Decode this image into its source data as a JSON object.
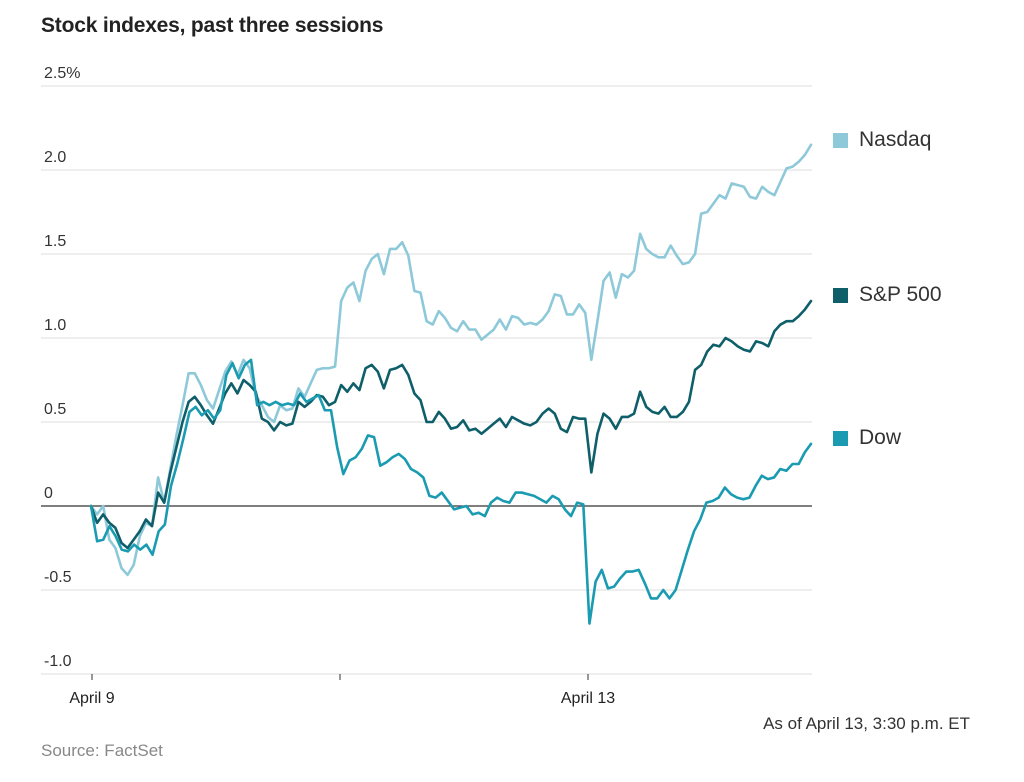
{
  "chart_data": {
    "type": "line",
    "title": "Stock indexes, past three sessions",
    "ylim": [
      -1.0,
      2.5
    ],
    "yticks": [
      {
        "value": 2.5,
        "label": "2.5%"
      },
      {
        "value": 2.0,
        "label": "2.0"
      },
      {
        "value": 1.5,
        "label": "1.5"
      },
      {
        "value": 1.0,
        "label": "1.0"
      },
      {
        "value": 0.5,
        "label": "0.5"
      },
      {
        "value": 0.0,
        "label": "0"
      },
      {
        "value": -0.5,
        "label": "-0.5"
      },
      {
        "value": -1.0,
        "label": "-1.0"
      }
    ],
    "xticks": [
      {
        "label": "April 9"
      },
      {
        "label": ""
      },
      {
        "label": "April 13"
      }
    ],
    "grid": true,
    "legend_position": "right",
    "series": [
      {
        "name": "Nasdaq",
        "color": "#8ec9d9",
        "values": [
          0.0,
          -0.05,
          0.0,
          -0.2,
          -0.25,
          -0.37,
          -0.41,
          -0.35,
          -0.18,
          -0.1,
          -0.12,
          0.17,
          0.02,
          0.22,
          0.42,
          0.6,
          0.79,
          0.79,
          0.72,
          0.63,
          0.58,
          0.69,
          0.8,
          0.86,
          0.78,
          0.87,
          0.82,
          0.66,
          0.6,
          0.53,
          0.5,
          0.6,
          0.57,
          0.58,
          0.7,
          0.65,
          0.73,
          0.81,
          0.82,
          0.82,
          0.83,
          1.22,
          1.3,
          1.33,
          1.22,
          1.4,
          1.47,
          1.5,
          1.38,
          1.53,
          1.53,
          1.57,
          1.49,
          1.28,
          1.27,
          1.1,
          1.08,
          1.16,
          1.12,
          1.06,
          1.04,
          1.1,
          1.05,
          1.05,
          0.99,
          1.02,
          1.05,
          1.11,
          1.05,
          1.13,
          1.12,
          1.08,
          1.09,
          1.08,
          1.11,
          1.16,
          1.26,
          1.25,
          1.14,
          1.14,
          1.2,
          1.15,
          0.87,
          1.1,
          1.34,
          1.39,
          1.24,
          1.38,
          1.36,
          1.4,
          1.62,
          1.53,
          1.5,
          1.48,
          1.48,
          1.55,
          1.49,
          1.44,
          1.45,
          1.5,
          1.74,
          1.75,
          1.8,
          1.85,
          1.83,
          1.92,
          1.91,
          1.9,
          1.84,
          1.83,
          1.9,
          1.87,
          1.85,
          1.93,
          2.01,
          2.02,
          2.05,
          2.09,
          2.15
        ]
      },
      {
        "name": "S&P 500",
        "color": "#0e5f6a",
        "values": [
          0.0,
          -0.1,
          -0.05,
          -0.1,
          -0.13,
          -0.22,
          -0.25,
          -0.2,
          -0.15,
          -0.08,
          -0.12,
          0.08,
          0.02,
          0.2,
          0.35,
          0.5,
          0.62,
          0.65,
          0.6,
          0.54,
          0.49,
          0.58,
          0.67,
          0.73,
          0.67,
          0.75,
          0.72,
          0.68,
          0.52,
          0.5,
          0.45,
          0.5,
          0.48,
          0.49,
          0.62,
          0.59,
          0.62,
          0.66,
          0.65,
          0.6,
          0.62,
          0.72,
          0.68,
          0.73,
          0.69,
          0.82,
          0.84,
          0.8,
          0.7,
          0.81,
          0.82,
          0.84,
          0.78,
          0.67,
          0.63,
          0.5,
          0.5,
          0.56,
          0.52,
          0.46,
          0.47,
          0.51,
          0.45,
          0.46,
          0.43,
          0.46,
          0.49,
          0.52,
          0.47,
          0.53,
          0.51,
          0.49,
          0.48,
          0.5,
          0.55,
          0.58,
          0.55,
          0.46,
          0.44,
          0.53,
          0.52,
          0.52,
          0.2,
          0.43,
          0.55,
          0.52,
          0.46,
          0.53,
          0.53,
          0.55,
          0.68,
          0.59,
          0.56,
          0.55,
          0.59,
          0.53,
          0.53,
          0.56,
          0.62,
          0.81,
          0.84,
          0.92,
          0.96,
          0.95,
          1.0,
          0.98,
          0.95,
          0.93,
          0.92,
          0.98,
          0.97,
          0.95,
          1.04,
          1.08,
          1.1,
          1.1,
          1.13,
          1.17,
          1.22
        ]
      },
      {
        "name": "Dow",
        "color": "#1a9bb1",
        "values": [
          0.0,
          -0.21,
          -0.2,
          -0.12,
          -0.18,
          -0.26,
          -0.27,
          -0.23,
          -0.26,
          -0.23,
          -0.29,
          -0.15,
          -0.11,
          0.12,
          0.25,
          0.4,
          0.56,
          0.59,
          0.54,
          0.57,
          0.52,
          0.57,
          0.78,
          0.85,
          0.76,
          0.84,
          0.87,
          0.6,
          0.62,
          0.6,
          0.62,
          0.6,
          0.61,
          0.6,
          0.67,
          0.62,
          0.64,
          0.66,
          0.57,
          0.57,
          0.35,
          0.19,
          0.27,
          0.29,
          0.34,
          0.42,
          0.41,
          0.24,
          0.26,
          0.29,
          0.31,
          0.28,
          0.22,
          0.2,
          0.17,
          0.06,
          0.05,
          0.08,
          0.03,
          -0.02,
          -0.01,
          0.0,
          -0.05,
          -0.04,
          -0.06,
          0.02,
          0.05,
          0.03,
          0.02,
          0.08,
          0.08,
          0.07,
          0.06,
          0.04,
          0.02,
          0.06,
          0.04,
          -0.02,
          -0.06,
          0.02,
          0.01,
          -0.7,
          -0.45,
          -0.38,
          -0.49,
          -0.48,
          -0.43,
          -0.39,
          -0.39,
          -0.38,
          -0.46,
          -0.55,
          -0.55,
          -0.5,
          -0.55,
          -0.5,
          -0.38,
          -0.26,
          -0.15,
          -0.08,
          0.02,
          0.03,
          0.05,
          0.11,
          0.07,
          0.05,
          0.04,
          0.05,
          0.12,
          0.18,
          0.16,
          0.17,
          0.22,
          0.21,
          0.25,
          0.25,
          0.32,
          0.37
        ]
      }
    ]
  },
  "footer": {
    "as_of": "As of April 13, 3:30 p.m. ET",
    "source": "Source: FactSet"
  }
}
